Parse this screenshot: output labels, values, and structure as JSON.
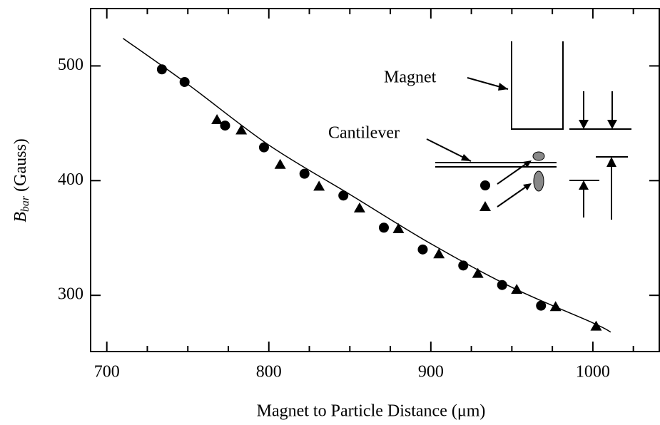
{
  "chart_data": {
    "type": "scatter",
    "xlabel": "Magnet to Particle Distance (μm)",
    "ylabel": {
      "main": "B",
      "sub": "bar",
      "unit": "(Gauss)"
    },
    "xlim": [
      690,
      1041
    ],
    "ylim": [
      251,
      550
    ],
    "xticks": [
      700,
      800,
      900,
      1000
    ],
    "xminorticks": [
      725,
      750,
      775,
      825,
      850,
      875,
      925,
      950,
      975,
      1025
    ],
    "yticks": [
      300,
      400,
      500
    ],
    "series": [
      {
        "marker": "circle",
        "color": "#000000",
        "x": [
          734,
          748,
          773,
          797,
          822,
          846,
          871,
          895,
          920,
          944,
          968
        ],
        "values": [
          497,
          486,
          448,
          429,
          406,
          387,
          359,
          340,
          326,
          309,
          291
        ]
      },
      {
        "marker": "triangle",
        "color": "#000000",
        "x": [
          768,
          783,
          807,
          831,
          856,
          880,
          905,
          929,
          953,
          977,
          1002
        ],
        "values": [
          453,
          444,
          414,
          395,
          376,
          358,
          336,
          319,
          305,
          290,
          273
        ]
      },
      {
        "marker": "line",
        "color": "#000000",
        "x": [
          710,
          750,
          800,
          850,
          900,
          950,
          1000,
          1011
        ],
        "values": [
          524,
          484,
          431,
          388,
          345,
          307,
          276,
          268
        ]
      }
    ],
    "annotations": {
      "magnet": "Magnet",
      "cantilever": "Cantilever"
    }
  }
}
